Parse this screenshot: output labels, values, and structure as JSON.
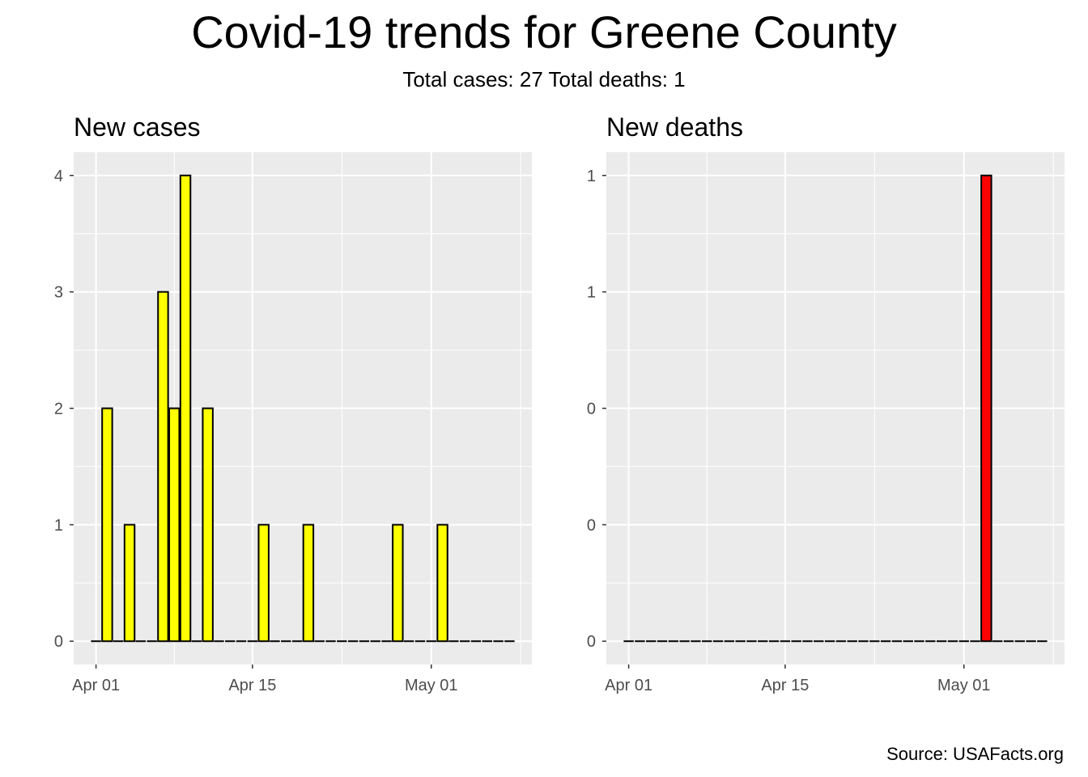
{
  "title": "Covid-19 trends for Greene County",
  "subtitle": "Total cases: 27  Total deaths: 1",
  "caption": "Source: USAFacts.org",
  "chart_data": [
    {
      "type": "bar",
      "title": "New cases",
      "fill": "#FFFF00",
      "outline": "#000000",
      "panel_background": "#EBEBEB",
      "grid": true,
      "x_type": "date",
      "xlim": [
        "2020-03-30",
        "2020-05-10"
      ],
      "x_ticks": [
        {
          "date": "2020-04-01",
          "label": "Apr 01"
        },
        {
          "date": "2020-04-15",
          "label": "Apr 15"
        },
        {
          "date": "2020-05-01",
          "label": "May 01"
        }
      ],
      "ylim": [
        -0.2,
        4.2
      ],
      "y_ticks": [
        {
          "value": 0,
          "label": "0"
        },
        {
          "value": 1,
          "label": "1"
        },
        {
          "value": 2,
          "label": "2"
        },
        {
          "value": 3,
          "label": "3"
        },
        {
          "value": 4,
          "label": "4"
        }
      ],
      "x": [
        "2020-04-01",
        "2020-04-02",
        "2020-04-03",
        "2020-04-04",
        "2020-04-05",
        "2020-04-06",
        "2020-04-07",
        "2020-04-08",
        "2020-04-09",
        "2020-04-10",
        "2020-04-11",
        "2020-04-12",
        "2020-04-13",
        "2020-04-14",
        "2020-04-15",
        "2020-04-16",
        "2020-04-17",
        "2020-04-18",
        "2020-04-19",
        "2020-04-20",
        "2020-04-21",
        "2020-04-22",
        "2020-04-23",
        "2020-04-24",
        "2020-04-25",
        "2020-04-26",
        "2020-04-27",
        "2020-04-28",
        "2020-04-29",
        "2020-04-30",
        "2020-05-01",
        "2020-05-02",
        "2020-05-03",
        "2020-05-04",
        "2020-05-05",
        "2020-05-06",
        "2020-05-07",
        "2020-05-08"
      ],
      "values": [
        0,
        2,
        0,
        1,
        0,
        0,
        3,
        2,
        4,
        0,
        2,
        0,
        0,
        0,
        0,
        1,
        0,
        0,
        0,
        1,
        0,
        0,
        0,
        0,
        0,
        0,
        0,
        1,
        0,
        0,
        0,
        1,
        0,
        0,
        0,
        0,
        0,
        0
      ]
    },
    {
      "type": "bar",
      "title": "New deaths",
      "fill": "#FF0000",
      "outline": "#000000",
      "panel_background": "#EBEBEB",
      "grid": true,
      "x_type": "date",
      "xlim": [
        "2020-03-30",
        "2020-05-10"
      ],
      "x_ticks": [
        {
          "date": "2020-04-01",
          "label": "Apr 01"
        },
        {
          "date": "2020-04-15",
          "label": "Apr 15"
        },
        {
          "date": "2020-05-01",
          "label": "May 01"
        }
      ],
      "ylim": [
        -0.05,
        1.05
      ],
      "y_ticks": [
        {
          "value": 0,
          "label": "0"
        },
        {
          "value": 0.25,
          "label": "0"
        },
        {
          "value": 0.5,
          "label": "0"
        },
        {
          "value": 0.75,
          "label": "1"
        },
        {
          "value": 1,
          "label": "1"
        }
      ],
      "x": [
        "2020-04-01",
        "2020-04-02",
        "2020-04-03",
        "2020-04-04",
        "2020-04-05",
        "2020-04-06",
        "2020-04-07",
        "2020-04-08",
        "2020-04-09",
        "2020-04-10",
        "2020-04-11",
        "2020-04-12",
        "2020-04-13",
        "2020-04-14",
        "2020-04-15",
        "2020-04-16",
        "2020-04-17",
        "2020-04-18",
        "2020-04-19",
        "2020-04-20",
        "2020-04-21",
        "2020-04-22",
        "2020-04-23",
        "2020-04-24",
        "2020-04-25",
        "2020-04-26",
        "2020-04-27",
        "2020-04-28",
        "2020-04-29",
        "2020-04-30",
        "2020-05-01",
        "2020-05-02",
        "2020-05-03",
        "2020-05-04",
        "2020-05-05",
        "2020-05-06",
        "2020-05-07",
        "2020-05-08"
      ],
      "values": [
        0,
        0,
        0,
        0,
        0,
        0,
        0,
        0,
        0,
        0,
        0,
        0,
        0,
        0,
        0,
        0,
        0,
        0,
        0,
        0,
        0,
        0,
        0,
        0,
        0,
        0,
        0,
        0,
        0,
        0,
        0,
        0,
        1,
        0,
        0,
        0,
        0,
        0
      ]
    }
  ]
}
